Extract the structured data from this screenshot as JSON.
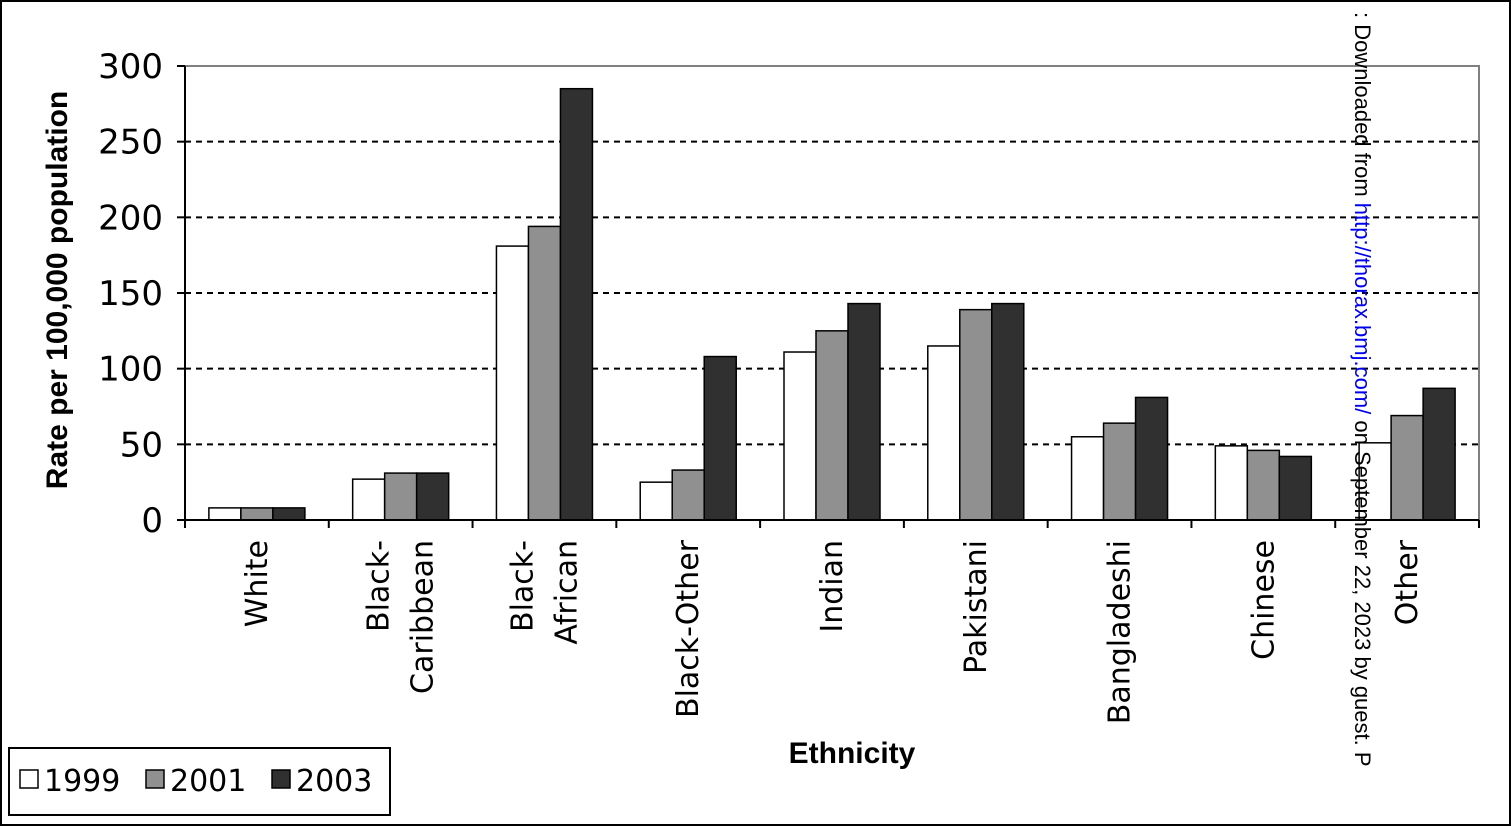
{
  "chart_data": {
    "type": "bar",
    "xlabel": "Ethnicity",
    "ylabel": "Rate per 100,000 population",
    "ylim": [
      0,
      300
    ],
    "yticks": [
      0,
      50,
      100,
      150,
      200,
      250,
      300
    ],
    "grid": "horizontal dashed",
    "legend_position": "bottom-left",
    "categories": [
      [
        "White"
      ],
      [
        "Black-",
        "Caribbean"
      ],
      [
        "Black-",
        "African"
      ],
      [
        "Black-Other"
      ],
      [
        "Indian"
      ],
      [
        "Pakistani"
      ],
      [
        "Bangladeshi"
      ],
      [
        "Chinese"
      ],
      [
        "Other"
      ]
    ],
    "series": [
      {
        "name": "1999",
        "color": "#ffffff",
        "values": [
          8,
          27,
          181,
          25,
          111,
          115,
          55,
          49,
          51
        ]
      },
      {
        "name": "2001",
        "color": "#909090",
        "values": [
          8,
          31,
          194,
          33,
          125,
          139,
          64,
          46,
          69
        ]
      },
      {
        "name": "2003",
        "color": "#303030",
        "values": [
          8,
          31,
          285,
          108,
          143,
          143,
          81,
          42,
          87
        ]
      }
    ]
  },
  "watermark": {
    "prefix": ": Downloaded from ",
    "link": "http://thorax.bmj.com/",
    "suffix": " on September 22, 2023 by guest. P"
  }
}
